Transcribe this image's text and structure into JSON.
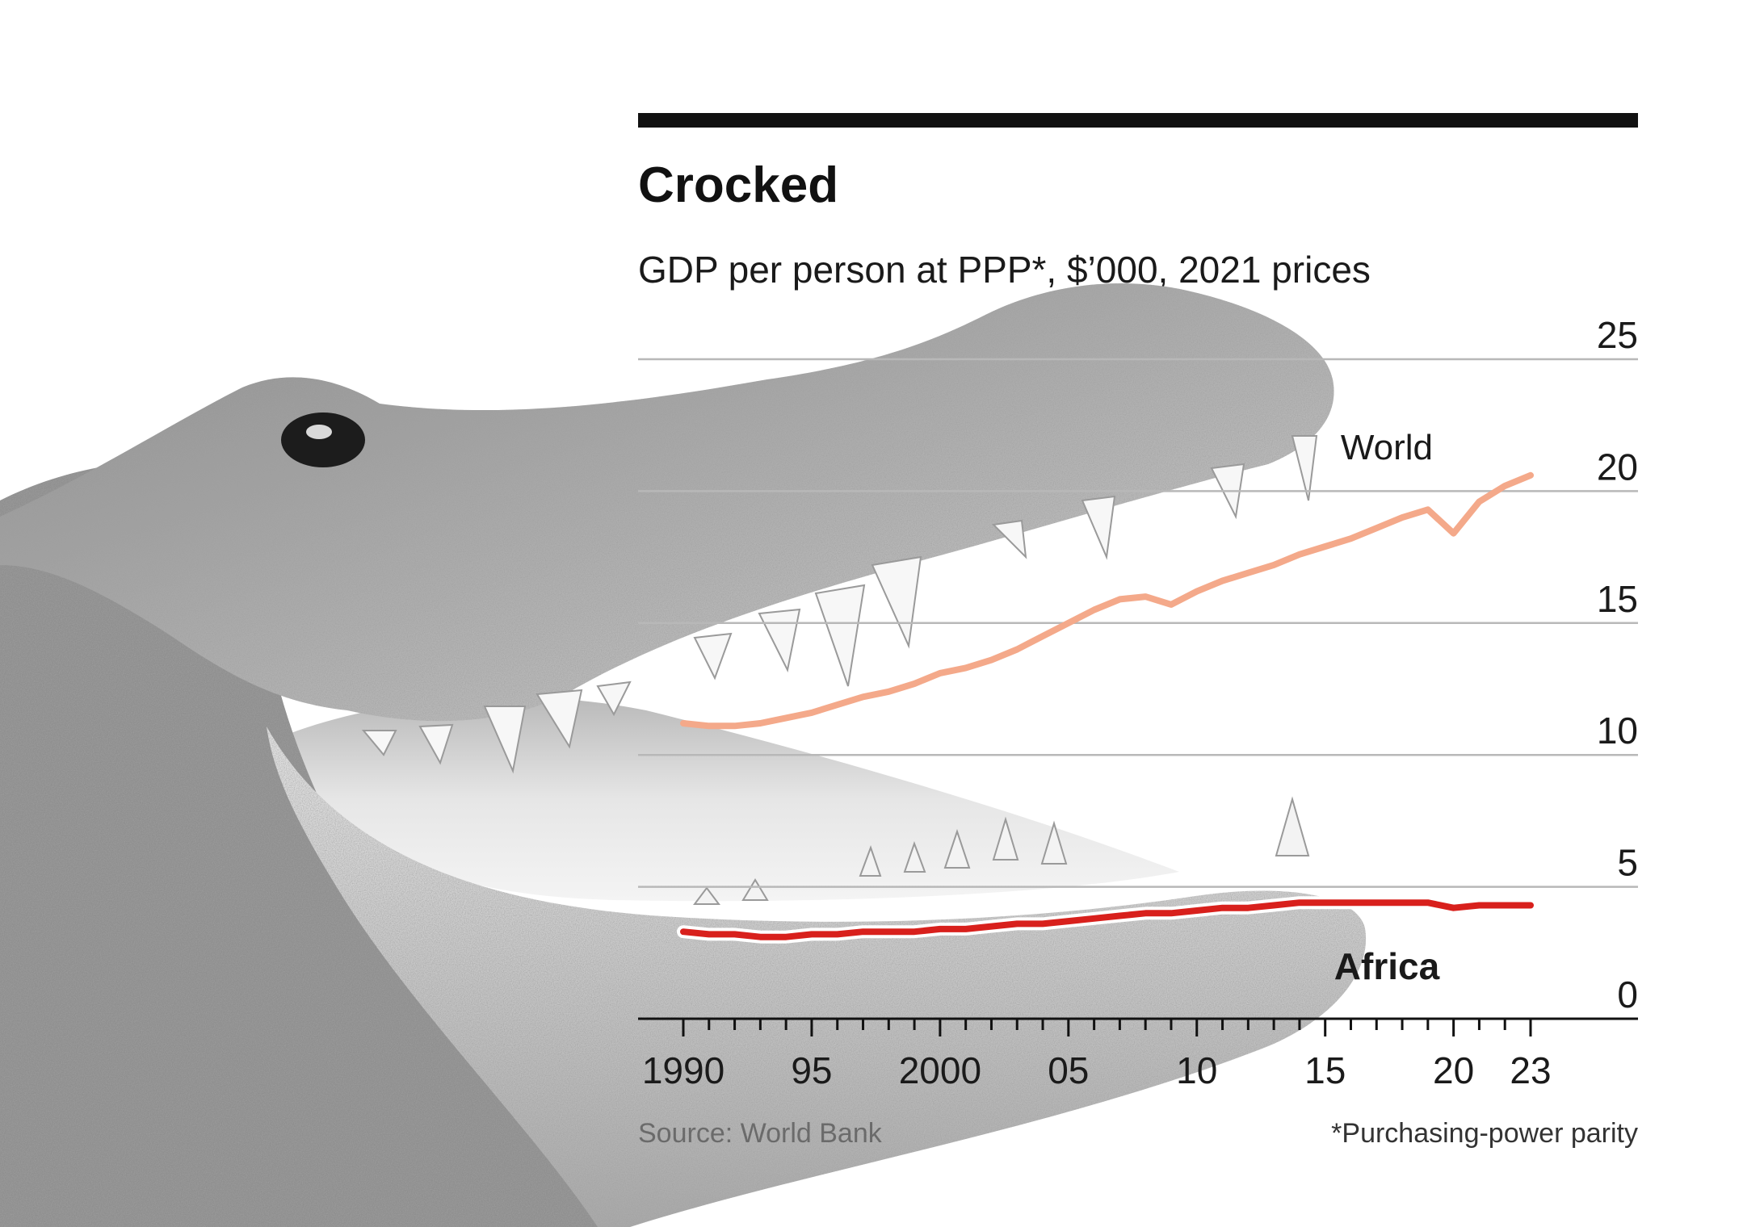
{
  "chart_data": {
    "type": "line",
    "title": "Crocked",
    "subtitle": "GDP per person at PPP*, $’000, 2021 prices",
    "xlabel": "",
    "ylabel": "",
    "x": [
      1990,
      1991,
      1992,
      1993,
      1994,
      1995,
      1996,
      1997,
      1998,
      1999,
      2000,
      2001,
      2002,
      2003,
      2004,
      2005,
      2006,
      2007,
      2008,
      2009,
      2010,
      2011,
      2012,
      2013,
      2014,
      2015,
      2016,
      2017,
      2018,
      2019,
      2020,
      2021,
      2022,
      2023
    ],
    "x_ticks": [
      1990,
      1995,
      2000,
      2005,
      2010,
      2015,
      2020,
      2023
    ],
    "x_tick_labels": [
      "1990",
      "95",
      "2000",
      "05",
      "10",
      "15",
      "20",
      "23"
    ],
    "y_ticks": [
      0,
      5,
      10,
      15,
      20,
      25
    ],
    "y_tick_labels": [
      "0",
      "5",
      "10",
      "15",
      "20",
      "25"
    ],
    "xlim": [
      1990,
      2023
    ],
    "ylim": [
      0,
      25
    ],
    "grid": true,
    "axis_side": "right",
    "series": [
      {
        "name": "World",
        "color": "#f4a98a",
        "label_position": "above line near 2018",
        "values": [
          11.2,
          11.1,
          11.1,
          11.2,
          11.4,
          11.6,
          11.9,
          12.2,
          12.4,
          12.7,
          13.1,
          13.3,
          13.6,
          14.0,
          14.5,
          15.0,
          15.5,
          15.9,
          16.0,
          15.7,
          16.2,
          16.6,
          16.9,
          17.2,
          17.6,
          17.9,
          18.2,
          18.6,
          19.0,
          19.3,
          18.4,
          19.6,
          20.2,
          20.6
        ]
      },
      {
        "name": "Africa",
        "color": "#d8201c",
        "label_bold": true,
        "label_position": "below line near 2018",
        "values": [
          3.3,
          3.2,
          3.2,
          3.1,
          3.1,
          3.2,
          3.2,
          3.3,
          3.3,
          3.3,
          3.4,
          3.4,
          3.5,
          3.6,
          3.6,
          3.7,
          3.8,
          3.9,
          4.0,
          4.0,
          4.1,
          4.2,
          4.2,
          4.3,
          4.4,
          4.4,
          4.4,
          4.4,
          4.4,
          4.4,
          4.2,
          4.3,
          4.3,
          4.3
        ]
      }
    ],
    "source": "Source: World Bank",
    "footnote": "*Purchasing-power parity"
  },
  "decoration": {
    "photo": "crocodile head with open jaws",
    "photo_style": "grayscale"
  }
}
